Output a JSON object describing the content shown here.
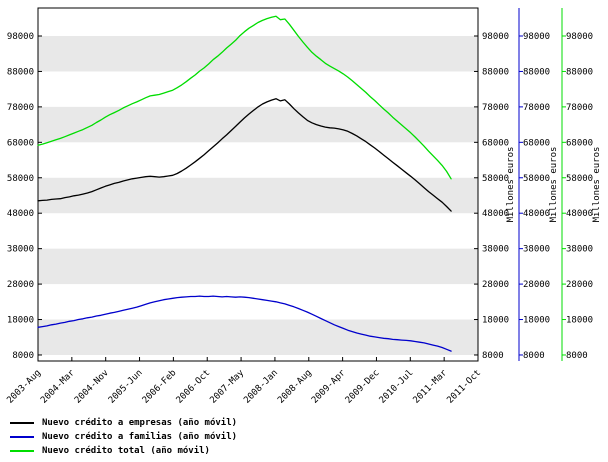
{
  "chart_data": {
    "type": "line",
    "title": "",
    "x_start": "2003-08",
    "x_interval": "monthly",
    "x_axis_end": "2011-10",
    "x_total_months": 98,
    "x_tick_labels": [
      "2003-Aug",
      "2004-Mar",
      "2004-Nov",
      "2005-Jun",
      "2006-Feb",
      "2006-Oct",
      "2007-May",
      "2008-Jan",
      "2008-Aug",
      "2009-Apr",
      "2009-Dec",
      "2010-Jul",
      "2011-Mar",
      "2011-Oct"
    ],
    "y_ticks": [
      8000,
      18000,
      28000,
      38000,
      48000,
      58000,
      68000,
      78000,
      88000,
      98000
    ],
    "y_axis_range": [
      6300,
      105900
    ],
    "right_axis_labels": [
      "Millones euros",
      "Millones euros",
      "Millones euros"
    ],
    "band_color": "#e8e8e8",
    "grid": "striped-bands",
    "legend_position": "bottom-left",
    "series": [
      {
        "name": "Nuevo crédito a empresas (año móvil)",
        "slug": "empresas",
        "color": "#000000",
        "values": [
          51500,
          51600,
          51700,
          51900,
          52000,
          52100,
          52400,
          52600,
          52900,
          53100,
          53400,
          53700,
          54100,
          54600,
          55100,
          55600,
          56000,
          56400,
          56700,
          57100,
          57400,
          57700,
          57900,
          58100,
          58300,
          58400,
          58300,
          58200,
          58300,
          58500,
          58700,
          59200,
          59900,
          60700,
          61600,
          62500,
          63500,
          64500,
          65600,
          66700,
          67800,
          69000,
          70100,
          71300,
          72500,
          73700,
          74900,
          76000,
          77000,
          78000,
          78800,
          79400,
          79900,
          80300,
          79700,
          80000,
          78800,
          77500,
          76300,
          75200,
          74200,
          73500,
          73000,
          72600,
          72300,
          72100,
          72000,
          71800,
          71500,
          71100,
          70500,
          69800,
          69000,
          68200,
          67300,
          66400,
          65400,
          64400,
          63400,
          62400,
          61400,
          60400,
          59400,
          58400,
          57400,
          56300,
          55200,
          54100,
          53100,
          52100,
          51100,
          49900,
          48600
        ]
      },
      {
        "name": "Nuevo crédito a familias (año móvil)",
        "slug": "familias",
        "color": "#0000cc",
        "values": [
          15800,
          16000,
          16200,
          16500,
          16700,
          17000,
          17200,
          17500,
          17700,
          18000,
          18200,
          18500,
          18700,
          19000,
          19200,
          19500,
          19800,
          20000,
          20300,
          20600,
          20900,
          21200,
          21500,
          21900,
          22300,
          22700,
          23000,
          23300,
          23600,
          23800,
          24000,
          24200,
          24300,
          24400,
          24500,
          24500,
          24600,
          24500,
          24500,
          24600,
          24500,
          24400,
          24500,
          24400,
          24300,
          24400,
          24300,
          24200,
          24000,
          23800,
          23600,
          23400,
          23200,
          23000,
          22700,
          22400,
          22000,
          21600,
          21100,
          20600,
          20100,
          19500,
          18900,
          18300,
          17700,
          17100,
          16500,
          16000,
          15500,
          15000,
          14600,
          14200,
          13900,
          13600,
          13300,
          13100,
          12900,
          12700,
          12600,
          12400,
          12300,
          12200,
          12100,
          12000,
          11800,
          11600,
          11400,
          11100,
          10800,
          10500,
          10100,
          9600,
          9100
        ]
      },
      {
        "name": "Nuevo crédito total (año móvil)",
        "slug": "total",
        "color": "#00dd00",
        "values": [
          67200,
          67500,
          67900,
          68300,
          68700,
          69100,
          69600,
          70100,
          70600,
          71100,
          71600,
          72200,
          72800,
          73600,
          74300,
          75100,
          75800,
          76400,
          77000,
          77700,
          78300,
          78900,
          79400,
          80000,
          80600,
          81100,
          81300,
          81500,
          81900,
          82300,
          82700,
          83400,
          84200,
          85100,
          86100,
          87000,
          88100,
          89000,
          90100,
          91300,
          92300,
          93400,
          94600,
          95700,
          96800,
          98100,
          99200,
          100200,
          101000,
          101800,
          102400,
          102900,
          103300,
          103600,
          102600,
          102800,
          101300,
          99600,
          97900,
          96300,
          94800,
          93400,
          92300,
          91300,
          90300,
          89500,
          88800,
          88100,
          87300,
          86400,
          85400,
          84300,
          83200,
          82100,
          80900,
          79800,
          78600,
          77400,
          76300,
          75100,
          74000,
          72900,
          71800,
          70700,
          69500,
          68200,
          66900,
          65500,
          64200,
          62900,
          61500,
          59800,
          57700
        ]
      }
    ]
  }
}
